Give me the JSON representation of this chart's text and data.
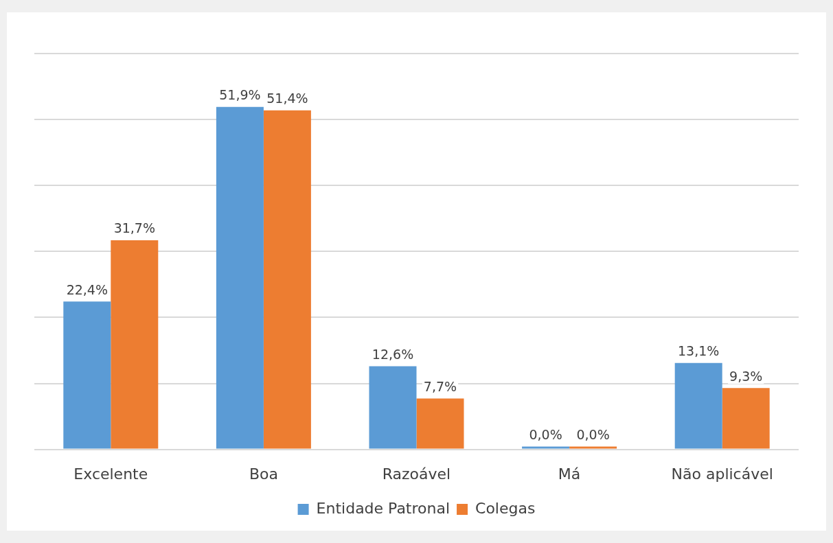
{
  "chart_data": {
    "type": "bar",
    "categories": [
      "Excelente",
      "Boa",
      "Razoável",
      "Má",
      "Não aplicável"
    ],
    "series": [
      {
        "name": "Entidade Patronal",
        "color": "#5b9bd5",
        "values": [
          22.4,
          51.9,
          12.6,
          0.0,
          13.1
        ],
        "value_labels": [
          "22,4%",
          "51,9%",
          "12,6%",
          "0,0%",
          "13,1%"
        ]
      },
      {
        "name": "Colegas",
        "color": "#ed7d31",
        "values": [
          31.7,
          51.4,
          7.7,
          0.0,
          9.3
        ],
        "value_labels": [
          "31,7%",
          "51,4%",
          "7,7%",
          "0,0%",
          "9,3%"
        ]
      }
    ],
    "ylim": [
      0,
      60
    ],
    "yticks": [
      {
        "value": 0,
        "label": null
      },
      {
        "value": 10,
        "label": null
      },
      {
        "value": 20,
        "label": null
      },
      {
        "value": 30,
        "label": null
      },
      {
        "value": 40,
        "label": null
      },
      {
        "value": 50,
        "label": null
      },
      {
        "value": 60,
        "label": null
      }
    ],
    "tick_labels": "x",
    "grid": "y",
    "legend": "bottom"
  }
}
